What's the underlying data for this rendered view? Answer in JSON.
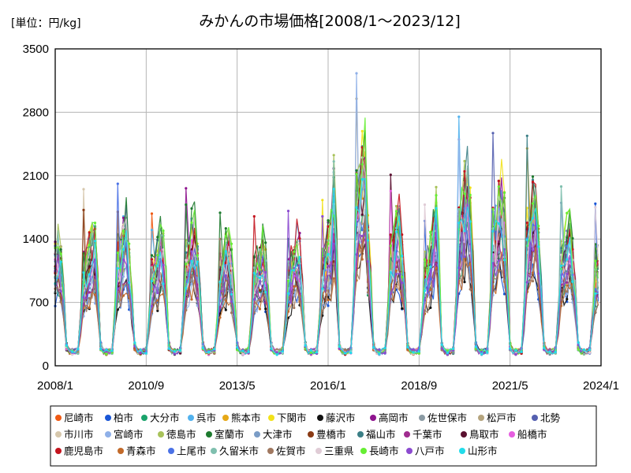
{
  "chart_data": {
    "type": "line",
    "title": "みかんの市場価格[2008/1〜2023/12]",
    "unit_label": "[単位：円/kg]",
    "xlabel": "",
    "ylabel": "",
    "ylim": [
      0,
      3500
    ],
    "yticks": [
      0,
      700,
      1400,
      2100,
      2800,
      3500
    ],
    "xlim": [
      2008.0,
      2024.0
    ],
    "xticks": [
      {
        "value": 2008.0,
        "label": "2008/1"
      },
      {
        "value": 2010.667,
        "label": "2010/9"
      },
      {
        "value": 2013.333,
        "label": "2013/5"
      },
      {
        "value": 2016.0,
        "label": "2016/1"
      },
      {
        "value": 2018.667,
        "label": "2018/9"
      },
      {
        "value": 2021.333,
        "label": "2021/5"
      },
      {
        "value": 2024.0,
        "label": "2024/1"
      }
    ],
    "season_peaks": [
      {
        "year": 2008,
        "peak": 1720,
        "secondary": 1950
      },
      {
        "year": 2009,
        "peak": 2010,
        "secondary": 1700
      },
      {
        "year": 2010,
        "peak": 1680,
        "secondary": 1500
      },
      {
        "year": 2011,
        "peak": 1960,
        "secondary": 1780
      },
      {
        "year": 2012,
        "peak": 1690,
        "secondary": 1400
      },
      {
        "year": 2013,
        "peak": 1650,
        "secondary": 1200
      },
      {
        "year": 2014,
        "peak": 1710,
        "secondary": 1400
      },
      {
        "year": 2015,
        "peak": 1830,
        "secondary": 1650
      },
      {
        "year": 2016,
        "peak": 3230,
        "secondary": 2950
      },
      {
        "year": 2017,
        "peak": 2110,
        "secondary": 1930
      },
      {
        "year": 2018,
        "peak": 1780,
        "secondary": 1600
      },
      {
        "year": 2019,
        "peak": 2750,
        "secondary": 2500
      },
      {
        "year": 2020,
        "peak": 2570,
        "secondary": 1700
      },
      {
        "year": 2021,
        "peak": 2540,
        "secondary": 2400
      },
      {
        "year": 2022,
        "peak": 1980,
        "secondary": 1800
      },
      {
        "year": 2023,
        "peak": 1790,
        "secondary": 1750
      }
    ],
    "series": [
      {
        "name": "尼崎市",
        "color": "#f05a14"
      },
      {
        "name": "柏市",
        "color": "#1a56d6"
      },
      {
        "name": "大分市",
        "color": "#1aa36b"
      },
      {
        "name": "呉市",
        "color": "#52b2ee"
      },
      {
        "name": "熊本市",
        "color": "#e6a817"
      },
      {
        "name": "下関市",
        "color": "#f2e21a"
      },
      {
        "name": "藤沢市",
        "color": "#111111"
      },
      {
        "name": "高岡市",
        "color": "#8e148e"
      },
      {
        "name": "佐世保市",
        "color": "#8a9aa3"
      },
      {
        "name": "松戸市",
        "color": "#b5a47e"
      },
      {
        "name": "北勢",
        "color": "#5560b0"
      },
      {
        "name": "市川市",
        "color": "#d6c7ac"
      },
      {
        "name": "宮崎市",
        "color": "#8fb0e8"
      },
      {
        "name": "徳島市",
        "color": "#a8c25a"
      },
      {
        "name": "室蘭市",
        "color": "#1d7a2e"
      },
      {
        "name": "大津市",
        "color": "#7a9cc6"
      },
      {
        "name": "豊橋市",
        "color": "#8a3a14"
      },
      {
        "name": "福山市",
        "color": "#3b7f86"
      },
      {
        "name": "千葉市",
        "color": "#a02c8f"
      },
      {
        "name": "鳥取市",
        "color": "#5a1030"
      },
      {
        "name": "船橋市",
        "color": "#e65ee0"
      },
      {
        "name": "鹿児島市",
        "color": "#c4141e"
      },
      {
        "name": "青森市",
        "color": "#c26a2a"
      },
      {
        "name": "上尾市",
        "color": "#4b72e6"
      },
      {
        "name": "久留米市",
        "color": "#7fbfae"
      },
      {
        "name": "佐賀市",
        "color": "#a07860"
      },
      {
        "name": "三重県",
        "color": "#e0ccd6"
      },
      {
        "name": "長崎市",
        "color": "#66ee33"
      },
      {
        "name": "八戸市",
        "color": "#8c4bd0"
      },
      {
        "name": "山形市",
        "color": "#22dcea"
      }
    ]
  }
}
